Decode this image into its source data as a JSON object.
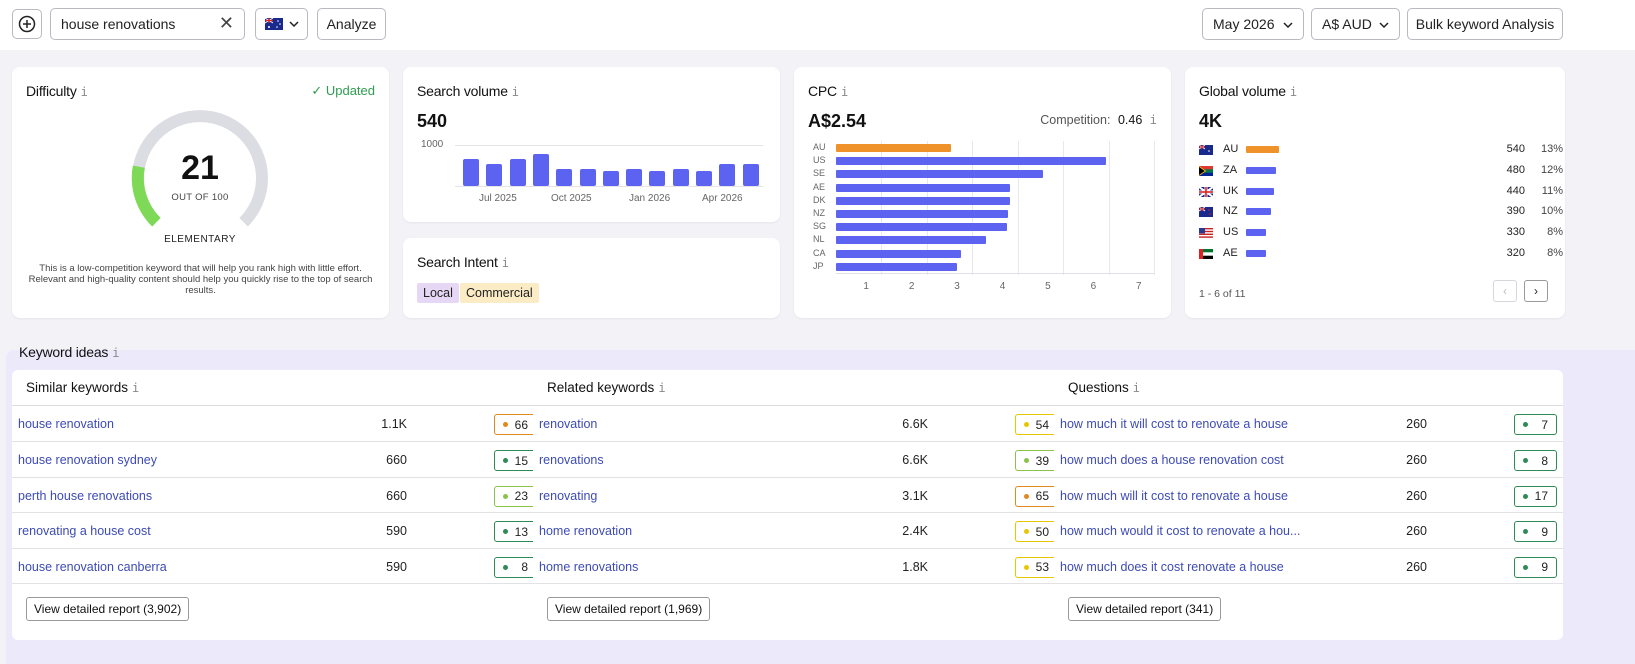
{
  "toolbar": {
    "search_value": "house renovations",
    "analyze_label": "Analyze",
    "date_label": "May 2026",
    "currency_label": "A$ AUD",
    "bulk_label": "Bulk keyword Analysis"
  },
  "difficulty": {
    "title": "Difficulty",
    "updated_label": "Updated",
    "score": "21",
    "score_value": 21,
    "out_of": "OUT OF 100",
    "level": "ELEMENTARY",
    "description": "This is a low-competition keyword that will help you rank high with little effort. Relevant and high-quality content should help you quickly rise to the top of search results."
  },
  "search_volume": {
    "title": "Search volume",
    "value": "540",
    "y_tick": "1000",
    "x_ticks": [
      "Jul 2025",
      "Oct 2025",
      "Jan 2026",
      "Apr 2026"
    ]
  },
  "search_intent": {
    "title": "Search Intent",
    "tags": [
      "Local",
      "Commercial"
    ]
  },
  "cpc": {
    "title": "CPC",
    "value": "A$2.54",
    "competition_label": "Competition:",
    "competition_value": "0.46"
  },
  "global_volume": {
    "title": "Global volume",
    "value": "4K",
    "rows": [
      {
        "code": "AU",
        "volume": "540",
        "pct": "13%",
        "share": 13
      },
      {
        "code": "ZA",
        "volume": "480",
        "pct": "12%",
        "share": 12
      },
      {
        "code": "UK",
        "volume": "440",
        "pct": "11%",
        "share": 11
      },
      {
        "code": "NZ",
        "volume": "390",
        "pct": "10%",
        "share": 10
      },
      {
        "code": "US",
        "volume": "330",
        "pct": "8%",
        "share": 8
      },
      {
        "code": "AE",
        "volume": "320",
        "pct": "8%",
        "share": 8
      }
    ],
    "pagination": "1 - 6 of 11"
  },
  "keyword_ideas": {
    "title": "Keyword ideas",
    "similar": {
      "title": "Similar keywords",
      "rows": [
        {
          "keyword": "house renovation",
          "volume": "1.1K",
          "kd": "66"
        },
        {
          "keyword": "house renovation sydney",
          "volume": "660",
          "kd": "15"
        },
        {
          "keyword": "perth house renovations",
          "volume": "660",
          "kd": "23"
        },
        {
          "keyword": "renovating a house cost",
          "volume": "590",
          "kd": "13"
        },
        {
          "keyword": "house renovation canberra",
          "volume": "590",
          "kd": "8"
        }
      ],
      "report_label": "View detailed report (3,902)"
    },
    "related": {
      "title": "Related keywords",
      "rows": [
        {
          "keyword": "renovation",
          "volume": "6.6K",
          "kd": "54"
        },
        {
          "keyword": "renovations",
          "volume": "6.6K",
          "kd": "39"
        },
        {
          "keyword": "renovating",
          "volume": "3.1K",
          "kd": "65"
        },
        {
          "keyword": "home renovation",
          "volume": "2.4K",
          "kd": "50"
        },
        {
          "keyword": "home renovations",
          "volume": "1.8K",
          "kd": "53"
        }
      ],
      "report_label": "View detailed report (1,969)"
    },
    "questions": {
      "title": "Questions",
      "rows": [
        {
          "keyword": "how much it will cost to renovate a house",
          "volume": "260",
          "kd": "7"
        },
        {
          "keyword": "how much does a house renovation cost",
          "volume": "260",
          "kd": "8"
        },
        {
          "keyword": "how much will it cost to renovate a house",
          "volume": "260",
          "kd": "17"
        },
        {
          "keyword": "how much would it cost to renovate a hou...",
          "volume": "260",
          "kd": "9"
        },
        {
          "keyword": "how much does it cost renovate a house",
          "volume": "260",
          "kd": "9"
        }
      ],
      "report_label": "View detailed report (341)"
    }
  },
  "colors": {
    "accent": "#5b63f0",
    "au_bar": "#f0922a",
    "difficulty_green": "#7ed957",
    "kd_green": "#2e8b57",
    "kd_lightgreen": "#8bc34a",
    "kd_yellow": "#e6c700",
    "kd_orange": "#e08a1e"
  },
  "chart_data": [
    {
      "type": "bar",
      "title": "Search volume",
      "categories": [
        "May 2025",
        "Jun 2025",
        "Jul 2025",
        "Aug 2025",
        "Sep 2025",
        "Oct 2025",
        "Nov 2025",
        "Dec 2025",
        "Jan 2026",
        "Feb 2026",
        "Mar 2026",
        "Apr 2026",
        "May 2026"
      ],
      "x_ticks": [
        "Jul 2025",
        "Oct 2025",
        "Jan 2026",
        "Apr 2026"
      ],
      "values": [
        650,
        530,
        650,
        780,
        420,
        420,
        360,
        420,
        360,
        420,
        360,
        540,
        540
      ],
      "ylim": [
        0,
        1000
      ],
      "y_ticks": [
        1000
      ]
    },
    {
      "type": "bar",
      "orientation": "horizontal",
      "title": "CPC",
      "categories": [
        "AU",
        "US",
        "SE",
        "AE",
        "DK",
        "NZ",
        "SG",
        "NL",
        "CA",
        "JP"
      ],
      "values": [
        2.54,
        5.95,
        4.55,
        3.84,
        3.84,
        3.79,
        3.77,
        3.31,
        2.75,
        2.66
      ],
      "xlim": [
        0,
        7
      ],
      "x_ticks": [
        1,
        2,
        3,
        4,
        5,
        6,
        7
      ],
      "grid": true
    }
  ]
}
